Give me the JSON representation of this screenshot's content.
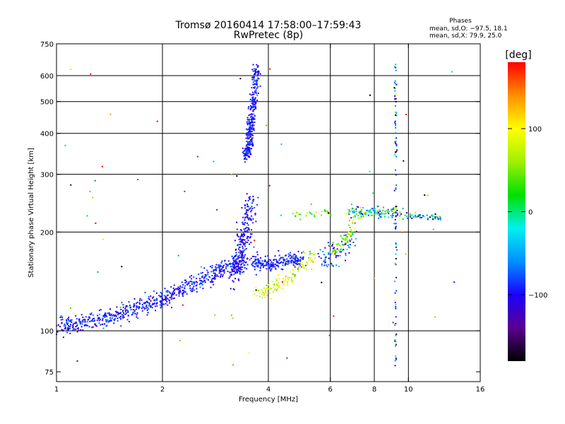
{
  "chart_data": {
    "type": "scatter",
    "title": "Tromsø 20160414 17:58:00–17:59:43",
    "subtitle": "RwPretec (8p)",
    "xlabel": "Frequency [MHz]",
    "ylabel": "Stationary phase Virtual Height [km]",
    "x_scale": "log",
    "y_scale": "log",
    "xlim": [
      1,
      16
    ],
    "ylim": [
      70,
      750
    ],
    "x_ticks": [
      {
        "value": 1,
        "label": "1"
      },
      {
        "value": 2,
        "label": "2"
      },
      {
        "value": 4,
        "label": "4"
      },
      {
        "value": 6,
        "label": "6"
      },
      {
        "value": 8,
        "label": "8"
      },
      {
        "value": 10,
        "label": "10"
      },
      {
        "value": 16,
        "label": "16"
      }
    ],
    "y_ticks": [
      {
        "value": 75,
        "label": "75"
      },
      {
        "value": 100,
        "label": "100"
      },
      {
        "value": 200,
        "label": "200"
      },
      {
        "value": 300,
        "label": "300"
      },
      {
        "value": 400,
        "label": "400"
      },
      {
        "value": 500,
        "label": "500"
      },
      {
        "value": 600,
        "label": "600"
      },
      {
        "value": 750,
        "label": "750"
      }
    ],
    "grid_x": [
      2,
      4,
      6,
      8,
      10
    ],
    "grid_y": [
      100,
      200,
      300,
      400,
      500,
      600
    ],
    "stats_title": "Phases",
    "stats_line1": "mean, sd,O: −97.5, 18.1",
    "stats_line2": "mean, sd,X:  79.9, 25.0",
    "colorbar": {
      "label": "[deg]",
      "range": [
        -180,
        180
      ],
      "ticks": [
        {
          "value": 100,
          "label": "100"
        },
        {
          "value": 0,
          "label": "0"
        },
        {
          "value": -100,
          "label": "−100"
        }
      ],
      "stops": [
        "#000000",
        "#5a0090",
        "#1c00ff",
        "#0090ff",
        "#00f0f0",
        "#00e000",
        "#a0f000",
        "#ffff00",
        "#ff9000",
        "#ff0000"
      ]
    },
    "clusters": [
      {
        "name": "low-frequency E/F trace",
        "x_from": 1.0,
        "x_to": 3.3,
        "y_from": 103,
        "y_to": 165,
        "spread": 0.03,
        "phase": -95,
        "phase_sd": 18,
        "count": 650
      },
      {
        "name": "F2 cusp near 3.5 MHz",
        "x_from": 3.2,
        "x_to": 3.55,
        "y_from": 150,
        "y_to": 250,
        "spread": 0.04,
        "phase": -100,
        "phase_sd": 15,
        "count": 280
      },
      {
        "name": "upper echo column",
        "x_from": 3.45,
        "x_to": 3.7,
        "y_from": 340,
        "y_to": 640,
        "spread": 0.02,
        "phase": -95,
        "phase_sd": 12,
        "count": 330
      },
      {
        "name": "O-trace plateau",
        "x_from": 3.6,
        "x_to": 5.0,
        "y_from": 160,
        "y_to": 165,
        "spread": 0.025,
        "phase": -92,
        "phase_sd": 12,
        "count": 220
      },
      {
        "name": "X-trace yellow band",
        "x_from": 3.7,
        "x_to": 5.5,
        "y_from": 130,
        "y_to": 175,
        "spread": 0.025,
        "phase": 85,
        "phase_sd": 25,
        "count": 120
      },
      {
        "name": "mid cluster 6–7 MHz",
        "x_from": 5.7,
        "x_to": 7.0,
        "y_from": 165,
        "y_to": 195,
        "spread": 0.04,
        "phase": -80,
        "phase_sd": 30,
        "count": 90
      },
      {
        "name": "green/yellow band",
        "x_from": 6.1,
        "x_to": 7.2,
        "y_from": 175,
        "y_to": 230,
        "spread": 0.03,
        "phase": 70,
        "phase_sd": 35,
        "count": 60
      },
      {
        "name": "upper plateau trace",
        "x_from": 6.8,
        "x_to": 9.5,
        "y_from": 232,
        "y_to": 228,
        "spread": 0.02,
        "phase": -20,
        "phase_sd": 60,
        "count": 140
      },
      {
        "name": "flat trace 10–12 MHz",
        "x_from": 9.8,
        "x_to": 12.5,
        "y_from": 224,
        "y_to": 220,
        "spread": 0.01,
        "phase": -60,
        "phase_sd": 60,
        "count": 50
      },
      {
        "name": "yellow dots near 5.3 MHz",
        "x_from": 4.7,
        "x_to": 6.0,
        "y_from": 227,
        "y_to": 231,
        "spread": 0.015,
        "phase": 60,
        "phase_sd": 30,
        "count": 30
      },
      {
        "name": "vertical line 9.2 MHz",
        "x_from": 9.2,
        "x_to": 9.2,
        "y_from": 78,
        "y_to": 650,
        "spread": 0.006,
        "phase": -90,
        "phase_sd": 60,
        "count": 90
      },
      {
        "name": "sparse noise",
        "x_from": 1.0,
        "x_to": 14.0,
        "y_from": 78,
        "y_to": 650,
        "spread": 0.0,
        "phase": 0,
        "phase_sd": 150,
        "count": 70
      }
    ]
  }
}
